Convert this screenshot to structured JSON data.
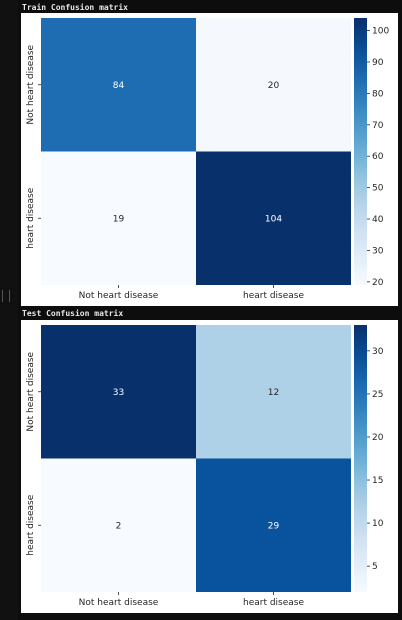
{
  "notebook": {
    "train_output_title": "Train Confusion matrix",
    "test_output_title": "Test Confusion matrix"
  },
  "chart_data": [
    {
      "type": "heatmap",
      "title": "Train Confusion matrix",
      "xlabel": "",
      "ylabel": "",
      "x_categories": [
        "Not heart disease",
        "heart disease"
      ],
      "y_categories": [
        "Not heart disease",
        "heart disease"
      ],
      "values": [
        [
          84,
          20
        ],
        [
          19,
          104
        ]
      ],
      "annotations": true,
      "colormap": "Blues",
      "colorbar": {
        "range": [
          19,
          104
        ],
        "ticks": [
          20,
          30,
          40,
          50,
          60,
          70,
          80,
          90,
          100
        ]
      }
    },
    {
      "type": "heatmap",
      "title": "Test Confusion matrix",
      "xlabel": "",
      "ylabel": "",
      "x_categories": [
        "Not heart disease",
        "heart disease"
      ],
      "y_categories": [
        "Not heart disease",
        "heart disease"
      ],
      "values": [
        [
          33,
          12
        ],
        [
          2,
          29
        ]
      ],
      "annotations": true,
      "colormap": "Blues",
      "colorbar": {
        "range": [
          2,
          33
        ],
        "ticks": [
          5,
          10,
          15,
          20,
          25,
          30
        ]
      }
    }
  ]
}
